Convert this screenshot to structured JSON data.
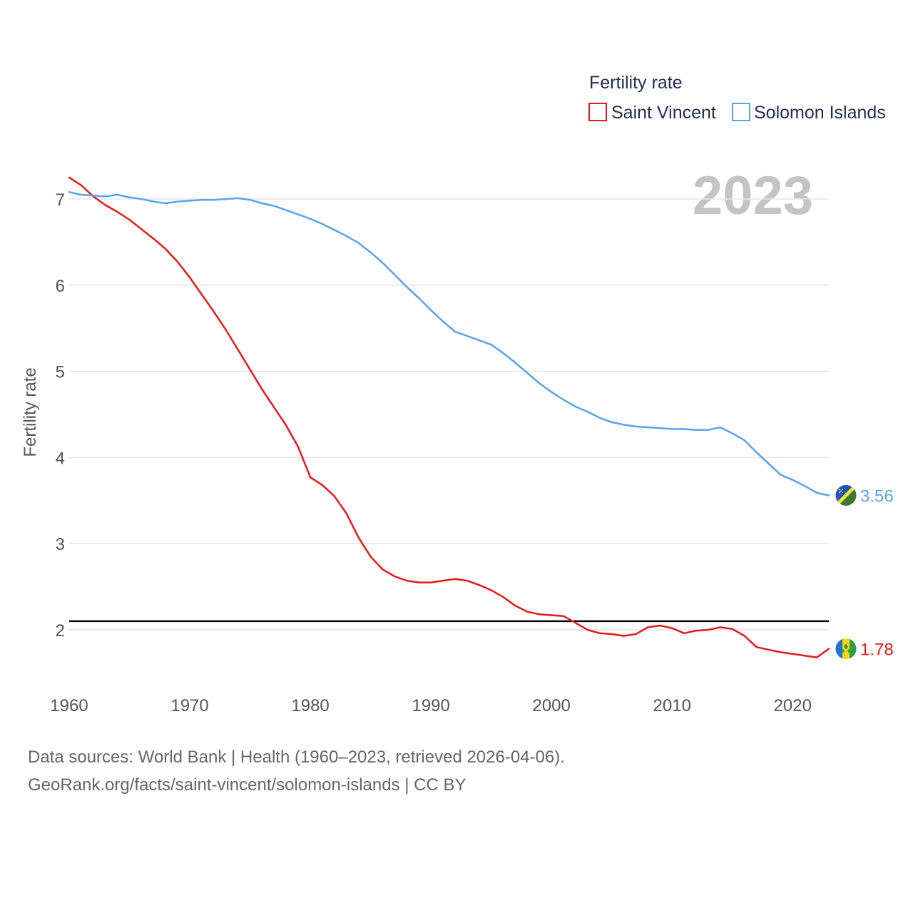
{
  "chart_data": {
    "type": "line",
    "title": "",
    "legend_title": "Fertility rate",
    "ylabel": "Fertility rate",
    "xlabel": "",
    "current_year_label": "2023",
    "xlim": [
      1960,
      2023
    ],
    "ylim": [
      1.5,
      7.3
    ],
    "x_ticks": [
      1960,
      1970,
      1980,
      1990,
      2000,
      2010,
      2020
    ],
    "y_ticks": [
      2,
      3,
      4,
      5,
      6,
      7
    ],
    "reference_line": {
      "y": 2.1
    },
    "x": [
      1960,
      1961,
      1962,
      1963,
      1964,
      1965,
      1966,
      1967,
      1968,
      1969,
      1970,
      1971,
      1972,
      1973,
      1974,
      1975,
      1976,
      1977,
      1978,
      1979,
      1980,
      1981,
      1982,
      1983,
      1984,
      1985,
      1986,
      1987,
      1988,
      1989,
      1990,
      1991,
      1992,
      1993,
      1994,
      1995,
      1996,
      1997,
      1998,
      1999,
      2000,
      2001,
      2002,
      2003,
      2004,
      2005,
      2006,
      2007,
      2008,
      2009,
      2010,
      2011,
      2012,
      2013,
      2014,
      2015,
      2016,
      2017,
      2018,
      2019,
      2020,
      2021,
      2022,
      2023
    ],
    "series": [
      {
        "name": "Saint Vincent",
        "color": "#e41a1c",
        "end_label": "1.78",
        "flag": "saint-vincent-flag-icon",
        "values": [
          7.25,
          7.16,
          7.03,
          6.93,
          6.85,
          6.76,
          6.65,
          6.54,
          6.42,
          6.27,
          6.09,
          5.89,
          5.69,
          5.48,
          5.25,
          5.02,
          4.79,
          4.58,
          4.37,
          4.12,
          3.77,
          3.68,
          3.55,
          3.35,
          3.07,
          2.85,
          2.7,
          2.62,
          2.57,
          2.55,
          2.55,
          2.57,
          2.59,
          2.57,
          2.52,
          2.46,
          2.38,
          2.28,
          2.21,
          2.18,
          2.17,
          2.16,
          2.08,
          2.0,
          1.96,
          1.95,
          1.93,
          1.95,
          2.03,
          2.05,
          2.02,
          1.96,
          1.99,
          2.0,
          2.03,
          2.01,
          1.93,
          1.8,
          1.77,
          1.74,
          1.72,
          1.7,
          1.68,
          1.78
        ]
      },
      {
        "name": "Solomon Islands",
        "color": "#5aa3e8",
        "end_label": "3.56",
        "flag": "solomon-islands-flag-icon",
        "values": [
          7.08,
          7.05,
          7.04,
          7.03,
          7.05,
          7.02,
          7.0,
          6.97,
          6.95,
          6.97,
          6.98,
          6.99,
          6.99,
          7.0,
          7.01,
          6.99,
          6.95,
          6.92,
          6.87,
          6.82,
          6.77,
          6.71,
          6.64,
          6.57,
          6.49,
          6.38,
          6.26,
          6.12,
          5.98,
          5.85,
          5.71,
          5.58,
          5.46,
          5.41,
          5.36,
          5.31,
          5.21,
          5.1,
          4.98,
          4.86,
          4.76,
          4.67,
          4.59,
          4.53,
          4.46,
          4.41,
          4.38,
          4.36,
          4.35,
          4.34,
          4.33,
          4.33,
          4.32,
          4.32,
          4.35,
          4.28,
          4.2,
          4.06,
          3.93,
          3.8,
          3.74,
          3.67,
          3.59,
          3.56
        ]
      }
    ],
    "sources_text": "Data sources: World Bank | Health (1960–2023, retrieved 2026-04-06).",
    "credit_text": "GeoRank.org/facts/saint-vincent/solomon-islands | CC BY"
  }
}
